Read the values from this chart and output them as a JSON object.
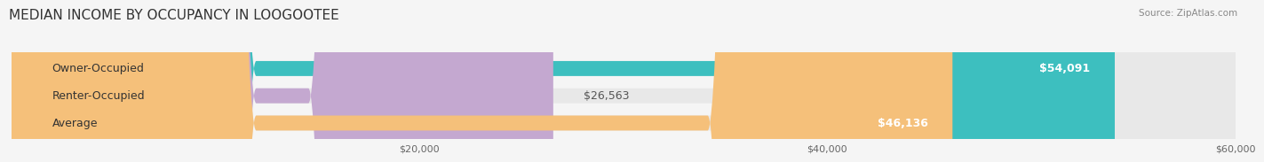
{
  "title": "MEDIAN INCOME BY OCCUPANCY IN LOOGOOTEE",
  "source": "Source: ZipAtlas.com",
  "categories": [
    "Owner-Occupied",
    "Renter-Occupied",
    "Average"
  ],
  "values": [
    54091,
    26563,
    46136
  ],
  "bar_colors": [
    "#3dbfbf",
    "#c4a8d0",
    "#f5c07a"
  ],
  "value_labels": [
    "$54,091",
    "$26,563",
    "$46,136"
  ],
  "xlim": [
    0,
    60000
  ],
  "xticks": [
    20000,
    40000,
    60000
  ],
  "xticklabels": [
    "$20,000",
    "$40,000",
    "$60,000"
  ],
  "background_color": "#f5f5f5",
  "bar_background_color": "#e8e8e8",
  "title_fontsize": 11,
  "label_fontsize": 9,
  "value_fontsize": 9,
  "bar_height": 0.55
}
